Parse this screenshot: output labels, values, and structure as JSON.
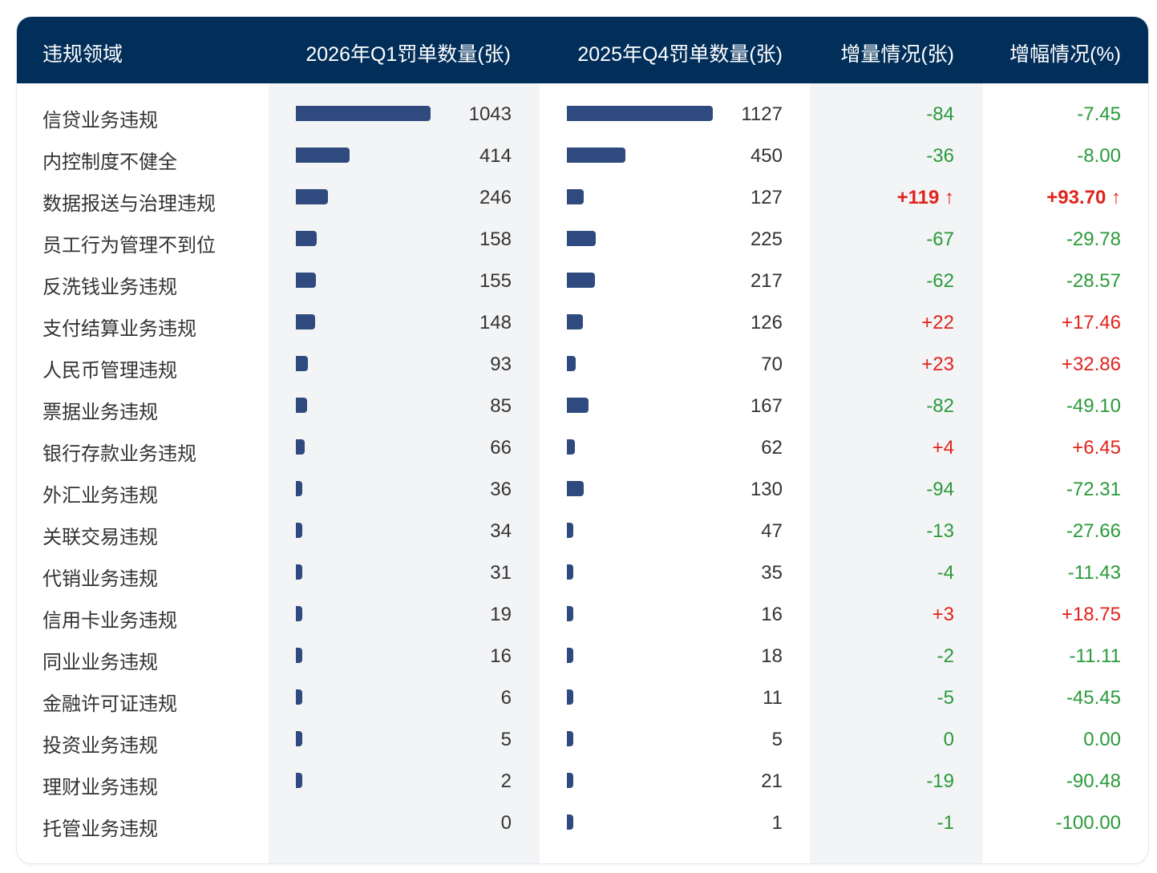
{
  "header": [
    "违规领域",
    "2026年Q1罚单数量(张)",
    "2025年Q4罚单数量(张)",
    "增量情况(张)",
    "增幅情况(%)"
  ],
  "colors": {
    "header_bg": "#022f5a",
    "bar": "#2f4a7e",
    "increase": "#e0231b",
    "decrease": "#2a9a3a",
    "shaded_column": "#f3f4f6"
  },
  "chart_data": {
    "type": "table",
    "columns": [
      "违规领域",
      "2026年Q1罚单数量(张)",
      "2025年Q4罚单数量(张)",
      "增量情况(张)",
      "增幅情况(%)"
    ],
    "rows": [
      {
        "name": "信贷业务违规",
        "q1": 1043,
        "q4": 1127,
        "delta": "-84",
        "pct": "-7.45"
      },
      {
        "name": "内控制度不健全",
        "q1": 414,
        "q4": 450,
        "delta": "-36",
        "pct": "-8.00"
      },
      {
        "name": "数据报送与治理违规",
        "q1": 246,
        "q4": 127,
        "delta": "+119 ↑",
        "pct": "+93.70 ↑",
        "highlight": true
      },
      {
        "name": "员工行为管理不到位",
        "q1": 158,
        "q4": 225,
        "delta": "-67",
        "pct": "-29.78"
      },
      {
        "name": "反洗钱业务违规",
        "q1": 155,
        "q4": 217,
        "delta": "-62",
        "pct": "-28.57"
      },
      {
        "name": "支付结算业务违规",
        "q1": 148,
        "q4": 126,
        "delta": "+22",
        "pct": "+17.46"
      },
      {
        "name": "人民币管理违规",
        "q1": 93,
        "q4": 70,
        "delta": "+23",
        "pct": "+32.86"
      },
      {
        "name": "票据业务违规",
        "q1": 85,
        "q4": 167,
        "delta": "-82",
        "pct": "-49.10"
      },
      {
        "name": "银行存款业务违规",
        "q1": 66,
        "q4": 62,
        "delta": "+4",
        "pct": "+6.45"
      },
      {
        "name": "外汇业务违规",
        "q1": 36,
        "q4": 130,
        "delta": "-94",
        "pct": "-72.31"
      },
      {
        "name": "关联交易违规",
        "q1": 34,
        "q4": 47,
        "delta": "-13",
        "pct": "-27.66"
      },
      {
        "name": "代销业务违规",
        "q1": 31,
        "q4": 35,
        "delta": "-4",
        "pct": "-11.43"
      },
      {
        "name": "信用卡业务违规",
        "q1": 19,
        "q4": 16,
        "delta": "+3",
        "pct": "+18.75"
      },
      {
        "name": "同业业务违规",
        "q1": 16,
        "q4": 18,
        "delta": "-2",
        "pct": "-11.11"
      },
      {
        "name": "金融许可证违规",
        "q1": 6,
        "q4": 11,
        "delta": "-5",
        "pct": "-45.45"
      },
      {
        "name": "投资业务违规",
        "q1": 5,
        "q4": 5,
        "delta": "0",
        "pct": "0.00"
      },
      {
        "name": "理财业务违规",
        "q1": 2,
        "q4": 21,
        "delta": "-19",
        "pct": "-90.48"
      },
      {
        "name": "托管业务违规",
        "q1": 0,
        "q4": 1,
        "delta": "-1",
        "pct": "-100.00"
      }
    ]
  }
}
